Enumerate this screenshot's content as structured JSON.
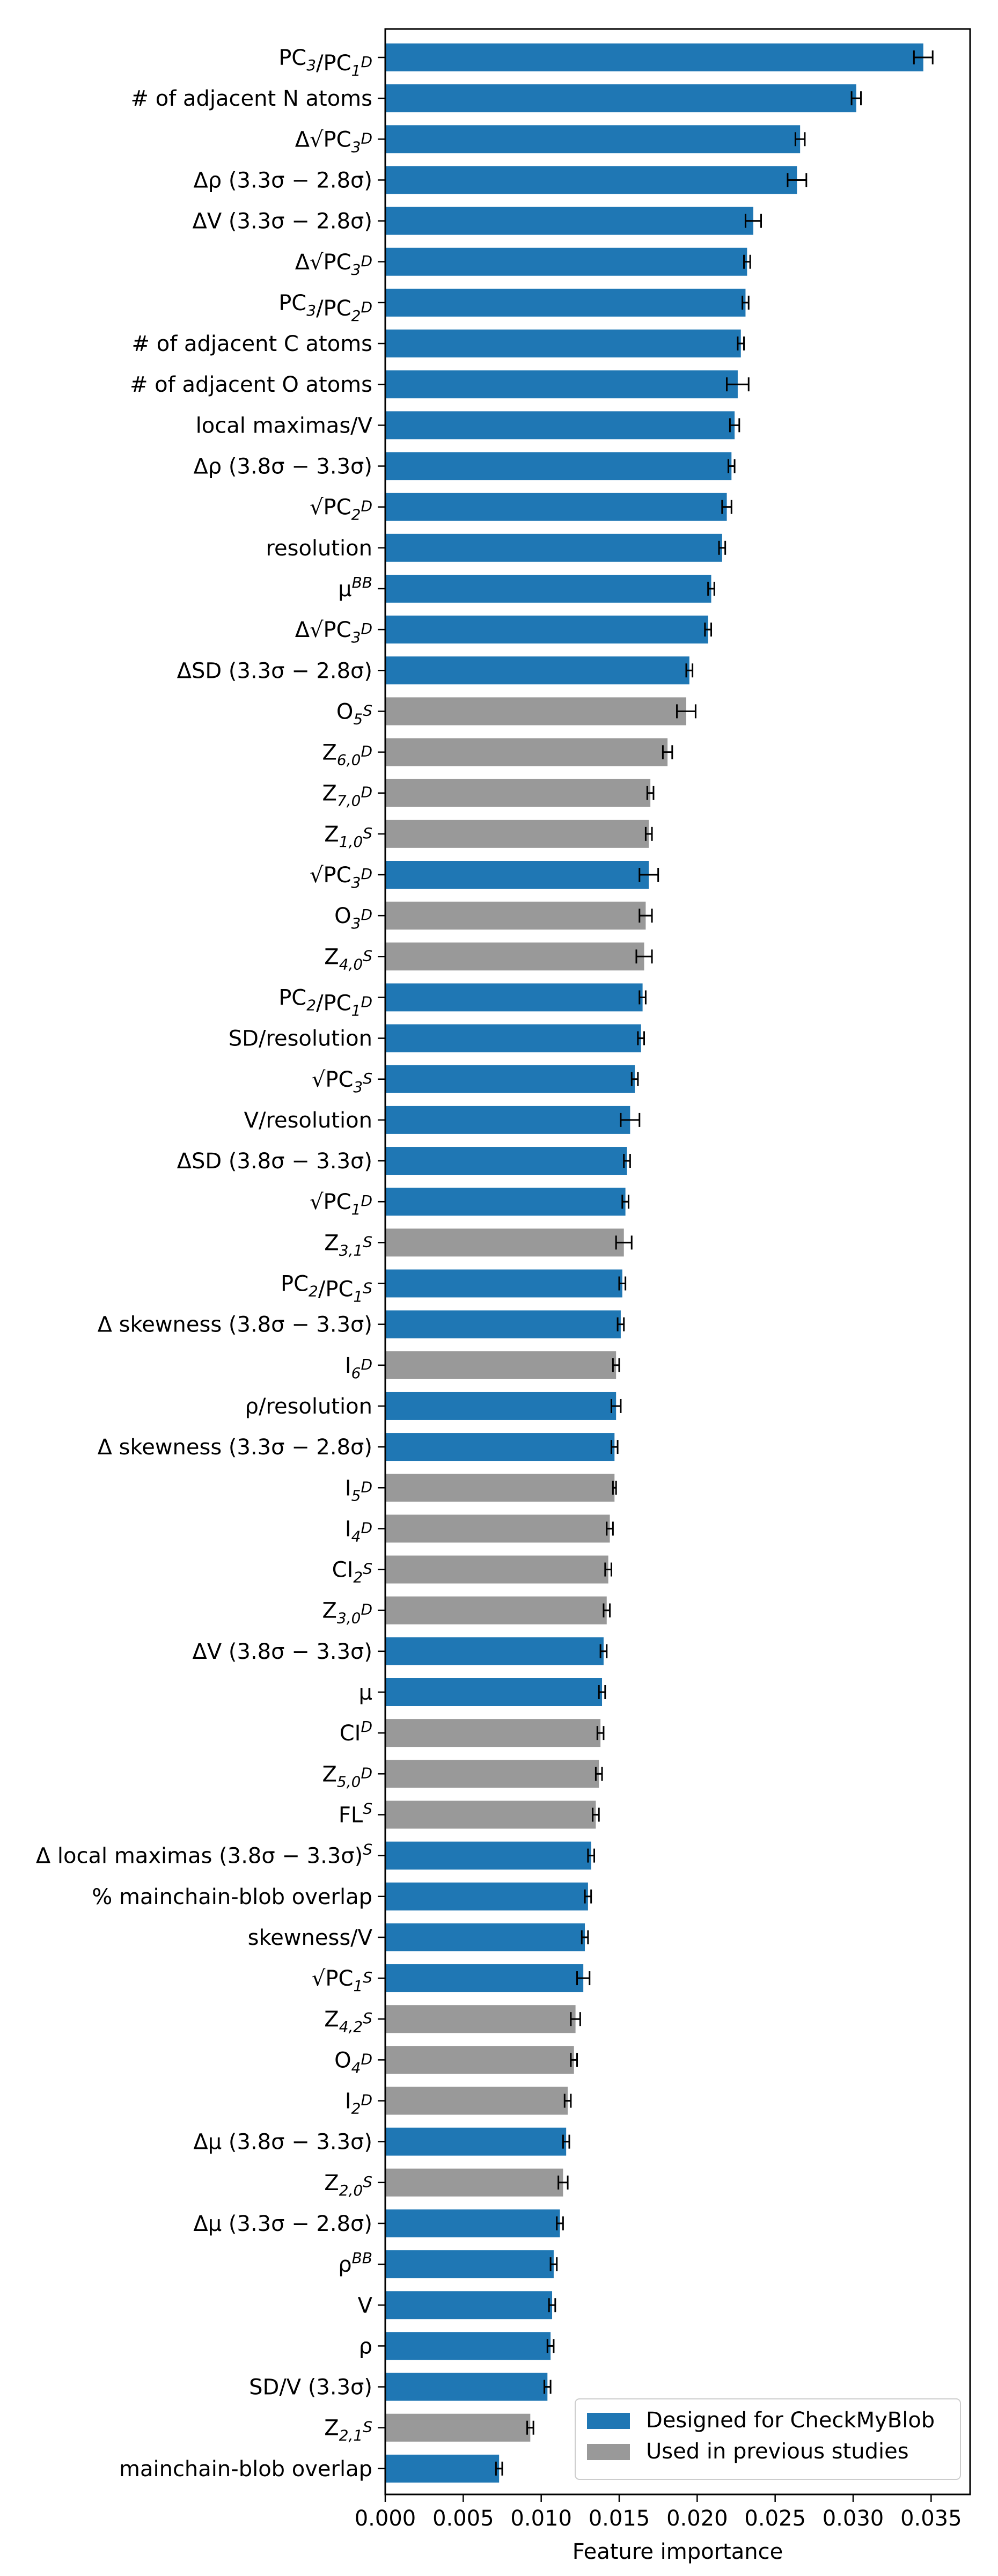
{
  "chart_data": {
    "type": "bar",
    "orientation": "horizontal",
    "xlabel": "Feature importance",
    "xlim": [
      0,
      0.0375
    ],
    "xticks": [
      "0.000",
      "0.005",
      "0.010",
      "0.015",
      "0.020",
      "0.025",
      "0.030",
      "0.035"
    ],
    "grid": false,
    "legend_position": "bottom-right",
    "series": [
      {
        "name": "Designed for CheckMyBlob",
        "color": "#1f77b4"
      },
      {
        "name": "Used in previous studies",
        "color": "#999999"
      }
    ],
    "bars": [
      {
        "label": "PC₃/PC₁ᴰ",
        "value": 0.0345,
        "err": 0.0006,
        "series": 0
      },
      {
        "label": "# of adjacent N atoms",
        "value": 0.0302,
        "err": 0.0003,
        "series": 0
      },
      {
        "label": "Δ√PC₃ᴰ",
        "value": 0.0266,
        "err": 0.0003,
        "series": 0
      },
      {
        "label": "Δρ (3.3σ − 2.8σ)",
        "value": 0.0264,
        "err": 0.0006,
        "series": 0
      },
      {
        "label": "ΔV (3.3σ − 2.8σ)",
        "value": 0.0236,
        "err": 0.0005,
        "series": 0
      },
      {
        "label": "Δ√PC₃ᴰ",
        "value": 0.0232,
        "err": 0.0002,
        "series": 0
      },
      {
        "label": "PC₃/PC₂ᴰ",
        "value": 0.0231,
        "err": 0.0002,
        "series": 0
      },
      {
        "label": "# of adjacent C atoms",
        "value": 0.0228,
        "err": 0.0002,
        "series": 0
      },
      {
        "label": "# of adjacent O atoms",
        "value": 0.0226,
        "err": 0.0007,
        "series": 0
      },
      {
        "label": "local maximas/V",
        "value": 0.0224,
        "err": 0.0003,
        "series": 0
      },
      {
        "label": "Δρ (3.8σ − 3.3σ)",
        "value": 0.0222,
        "err": 0.0002,
        "series": 0
      },
      {
        "label": "√PC₂ᴰ",
        "value": 0.0219,
        "err": 0.0003,
        "series": 0
      },
      {
        "label": "resolution",
        "value": 0.0216,
        "err": 0.0002,
        "series": 0
      },
      {
        "label": "μᴮᴮ",
        "value": 0.0209,
        "err": 0.0002,
        "series": 0
      },
      {
        "label": "Δ√PC₃ᴰ",
        "value": 0.0207,
        "err": 0.0002,
        "series": 0
      },
      {
        "label": "ΔSD (3.3σ − 2.8σ)",
        "value": 0.0195,
        "err": 0.0002,
        "series": 0
      },
      {
        "label": "O₅ˢ",
        "value": 0.0193,
        "err": 0.0006,
        "series": 1
      },
      {
        "label": "Z₆,₀ᴰ",
        "value": 0.0181,
        "err": 0.0003,
        "series": 1
      },
      {
        "label": "Z₇,₀ᴰ",
        "value": 0.017,
        "err": 0.0002,
        "series": 1
      },
      {
        "label": "Z₁,₀ˢ",
        "value": 0.0169,
        "err": 0.0002,
        "series": 1
      },
      {
        "label": "√PC₃ᴰ",
        "value": 0.0169,
        "err": 0.0006,
        "series": 0
      },
      {
        "label": "O₃ᴰ",
        "value": 0.0167,
        "err": 0.0004,
        "series": 1
      },
      {
        "label": "Z₄,₀ˢ",
        "value": 0.0166,
        "err": 0.0005,
        "series": 1
      },
      {
        "label": "PC₂/PC₁ᴰ",
        "value": 0.0165,
        "err": 0.0002,
        "series": 0
      },
      {
        "label": "SD/resolution",
        "value": 0.0164,
        "err": 0.0002,
        "series": 0
      },
      {
        "label": "√PC₃ˢ",
        "value": 0.016,
        "err": 0.0002,
        "series": 0
      },
      {
        "label": "V/resolution",
        "value": 0.0157,
        "err": 0.0006,
        "series": 0
      },
      {
        "label": "ΔSD (3.8σ − 3.3σ)",
        "value": 0.0155,
        "err": 0.0002,
        "series": 0
      },
      {
        "label": "√PC₁ᴰ",
        "value": 0.0154,
        "err": 0.0002,
        "series": 0
      },
      {
        "label": "Z₃,₁ˢ",
        "value": 0.0153,
        "err": 0.0005,
        "series": 1
      },
      {
        "label": "PC₂/PC₁ˢ",
        "value": 0.0152,
        "err": 0.0002,
        "series": 0
      },
      {
        "label": "Δ skewness (3.8σ − 3.3σ)",
        "value": 0.0151,
        "err": 0.0002,
        "series": 0
      },
      {
        "label": "I₆ᴰ",
        "value": 0.0148,
        "err": 0.0002,
        "series": 1
      },
      {
        "label": "ρ/resolution",
        "value": 0.0148,
        "err": 0.0003,
        "series": 0
      },
      {
        "label": "Δ skewness (3.3σ − 2.8σ)",
        "value": 0.0147,
        "err": 0.0002,
        "series": 0
      },
      {
        "label": "I₅ᴰ",
        "value": 0.0147,
        "err": 0.0001,
        "series": 1
      },
      {
        "label": "I₄ᴰ",
        "value": 0.0144,
        "err": 0.0002,
        "series": 1
      },
      {
        "label": "CI₂ˢ",
        "value": 0.0143,
        "err": 0.0002,
        "series": 1
      },
      {
        "label": "Z₃,₀ᴰ",
        "value": 0.0142,
        "err": 0.0002,
        "series": 1
      },
      {
        "label": "ΔV (3.8σ − 3.3σ)",
        "value": 0.014,
        "err": 0.0002,
        "series": 0
      },
      {
        "label": "μ",
        "value": 0.0139,
        "err": 0.0002,
        "series": 0
      },
      {
        "label": "CIᴰ",
        "value": 0.0138,
        "err": 0.0002,
        "series": 1
      },
      {
        "label": "Z₅,₀ᴰ",
        "value": 0.0137,
        "err": 0.0002,
        "series": 1
      },
      {
        "label": "FLˢ",
        "value": 0.0135,
        "err": 0.0002,
        "series": 1
      },
      {
        "label": "Δ local maximas (3.8σ − 3.3σ)ˢ",
        "value": 0.0132,
        "err": 0.0002,
        "series": 0
      },
      {
        "label": "% mainchain-blob overlap",
        "value": 0.013,
        "err": 0.0002,
        "series": 0
      },
      {
        "label": "skewness/V",
        "value": 0.0128,
        "err": 0.0002,
        "series": 0
      },
      {
        "label": "√PC₁ˢ",
        "value": 0.0127,
        "err": 0.0004,
        "series": 0
      },
      {
        "label": "Z₄,₂ˢ",
        "value": 0.0122,
        "err": 0.0003,
        "series": 1
      },
      {
        "label": "O₄ᴰ",
        "value": 0.0121,
        "err": 0.0002,
        "series": 1
      },
      {
        "label": "I₂ᴰ",
        "value": 0.0117,
        "err": 0.0002,
        "series": 1
      },
      {
        "label": "Δμ (3.8σ − 3.3σ)",
        "value": 0.0116,
        "err": 0.0002,
        "series": 0
      },
      {
        "label": "Z₂,₀ˢ",
        "value": 0.0114,
        "err": 0.0003,
        "series": 1
      },
      {
        "label": "Δμ (3.3σ − 2.8σ)",
        "value": 0.0112,
        "err": 0.0002,
        "series": 0
      },
      {
        "label": "ρᴮᴮ",
        "value": 0.0108,
        "err": 0.0002,
        "series": 0
      },
      {
        "label": "V",
        "value": 0.0107,
        "err": 0.0002,
        "series": 0
      },
      {
        "label": "ρ",
        "value": 0.0106,
        "err": 0.0002,
        "series": 0
      },
      {
        "label": "SD/V (3.3σ)",
        "value": 0.0104,
        "err": 0.0002,
        "series": 0
      },
      {
        "label": "Z₂,₁ˢ",
        "value": 0.0093,
        "err": 0.0002,
        "series": 1
      },
      {
        "label": "mainchain-blob overlap",
        "value": 0.0073,
        "err": 0.0002,
        "series": 0
      }
    ]
  }
}
